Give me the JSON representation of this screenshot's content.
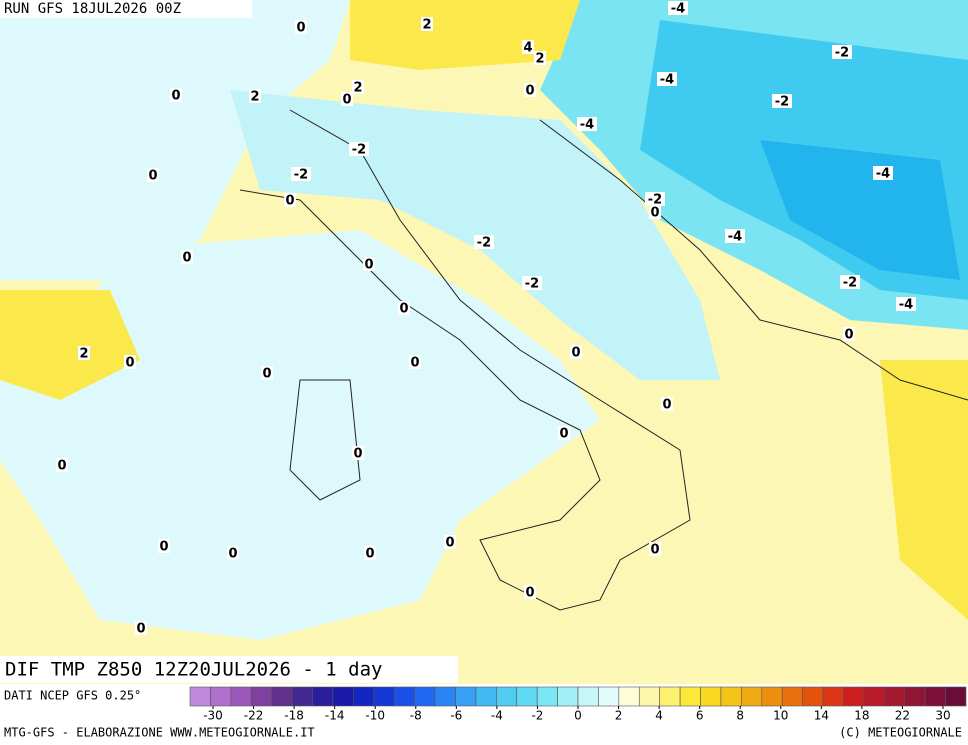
{
  "header": {
    "run": "RUN GFS 18JUL2026 00Z"
  },
  "map": {
    "contour_labels": [
      "0",
      "2",
      "-4",
      "4",
      "2",
      "-2",
      "0",
      "2",
      "0",
      "2",
      "0",
      "-4",
      "-2",
      "-4",
      "-2",
      "0",
      "-2",
      "-4",
      "0",
      "-2",
      "0",
      "-4",
      "-2",
      "0",
      "0",
      "-2",
      "-2",
      "-4",
      "0",
      "0",
      "2",
      "0",
      "0",
      "0",
      "0",
      "0",
      "0",
      "0",
      "0",
      "0",
      "0",
      "0",
      "0",
      "0",
      "0",
      "0"
    ]
  },
  "footer": {
    "title": "DIF TMP Z850 12Z20JUL2026 - 1 day",
    "source": "DATI NCEP GFS 0.25°",
    "credit": "MTG-GFS - ELABORAZIONE WWW.METEOGIORNALE.IT",
    "copyright": "(C) METEOGIORNALE"
  },
  "colorbar": {
    "ticks": [
      -30,
      -22,
      -18,
      -14,
      -10,
      -8,
      -6,
      -4,
      -2,
      0,
      2,
      4,
      6,
      8,
      10,
      14,
      18,
      22,
      30
    ]
  }
}
